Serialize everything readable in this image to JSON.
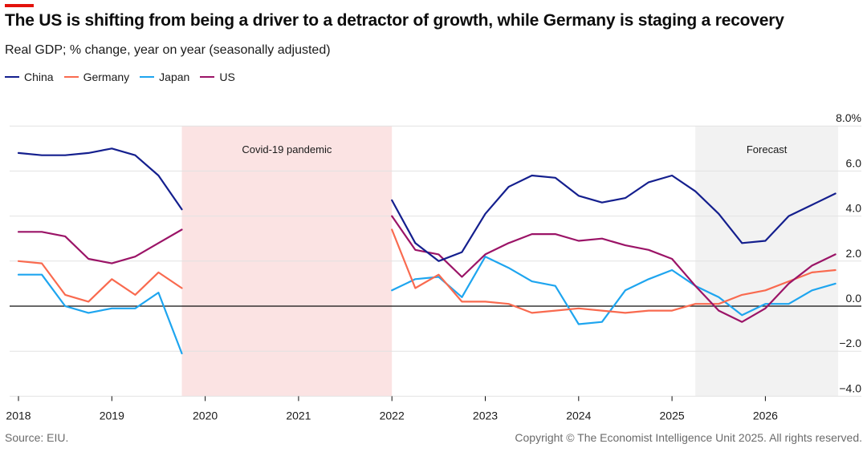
{
  "header": {
    "title": "The US is shifting from being a driver to a detractor of growth, while Germany is staging a recovery",
    "subtitle": "Real GDP; % change, year on year (seasonally adjusted)"
  },
  "footer": {
    "source": "Source: EIU.",
    "copyright": "Copyright © The Economist Intelligence Unit 2025. All rights reserved."
  },
  "colors": {
    "accent_bar": "#e3120b",
    "covid_band": "#fbe3e3",
    "forecast_band": "#f2f2f2"
  },
  "chart_data": {
    "type": "line",
    "title": "The US is shifting from being a driver to a detractor of growth, while Germany is staging a recovery",
    "subtitle": "Real GDP; % change, year on year (seasonally adjusted)",
    "xlabel": "",
    "ylabel": "",
    "x_unit": "year (quarterly data)",
    "xlim": [
      2018,
      2026.75
    ],
    "ylim": [
      -4,
      8
    ],
    "x_ticks": [
      2018,
      2019,
      2020,
      2021,
      2022,
      2023,
      2024,
      2025,
      2026
    ],
    "x_tick_labels": [
      "2018",
      "2019",
      "2020",
      "2021",
      "2022",
      "2023",
      "2024",
      "2025",
      "2026"
    ],
    "y_ticks": [
      8,
      6,
      4,
      2,
      0,
      -2,
      -4
    ],
    "y_tick_labels": [
      "8.0%",
      "6.0",
      "4.0",
      "2.0",
      "0.0",
      "−2.0",
      "−4.0"
    ],
    "y_axis_side": "right",
    "grid": true,
    "legend_position": "top-left",
    "bands": [
      {
        "name": "covid",
        "label": "Covid-19 pandemic",
        "from": 2019.75,
        "to": 2022.0,
        "color": "#fbe3e3"
      },
      {
        "name": "forecast",
        "label": "Forecast",
        "from": 2025.25,
        "to": 2026.78,
        "color": "#f2f2f2"
      }
    ],
    "segments": [
      {
        "x": [
          2018.0,
          2018.25,
          2018.5,
          2018.75,
          2019.0,
          2019.25,
          2019.5,
          2019.75
        ]
      },
      {
        "x": [
          2022.0,
          2022.25,
          2022.5,
          2022.75,
          2023.0,
          2023.25,
          2023.5,
          2023.75,
          2024.0,
          2024.25,
          2024.5,
          2024.75,
          2025.0,
          2025.25,
          2025.5,
          2025.75,
          2026.0,
          2026.25,
          2026.5,
          2026.75
        ]
      }
    ],
    "series": [
      {
        "name": "China",
        "color": "#141f8e",
        "values": [
          [
            6.8,
            6.7,
            6.7,
            6.8,
            7.0,
            6.7,
            5.8,
            4.3
          ],
          [
            4.7,
            2.8,
            2.0,
            2.4,
            4.1,
            5.3,
            5.8,
            5.7,
            4.9,
            4.6,
            4.8,
            5.5,
            5.8,
            5.1,
            4.1,
            2.8,
            2.9,
            4.0,
            4.5,
            5.0
          ]
        ]
      },
      {
        "name": "Germany",
        "color": "#f96a4f",
        "values": [
          [
            2.0,
            1.9,
            0.5,
            0.2,
            1.2,
            0.5,
            1.5,
            0.8
          ],
          [
            3.4,
            0.8,
            1.4,
            0.2,
            0.2,
            0.1,
            -0.3,
            -0.2,
            -0.1,
            -0.2,
            -0.3,
            -0.2,
            -0.2,
            0.1,
            0.1,
            0.5,
            0.7,
            1.1,
            1.5,
            1.6
          ]
        ]
      },
      {
        "name": "Japan",
        "color": "#1ea5ef",
        "values": [
          [
            1.4,
            1.4,
            0.0,
            -0.3,
            -0.1,
            -0.1,
            0.6,
            -2.1
          ],
          [
            0.7,
            1.2,
            1.3,
            0.4,
            2.2,
            1.7,
            1.1,
            0.9,
            -0.8,
            -0.7,
            0.7,
            1.2,
            1.6,
            0.9,
            0.4,
            -0.4,
            0.1,
            0.1,
            0.7,
            1.0
          ]
        ]
      },
      {
        "name": "US",
        "color": "#9b1467",
        "values": [
          [
            3.3,
            3.3,
            3.1,
            2.1,
            1.9,
            2.2,
            2.8,
            3.4
          ],
          [
            4.0,
            2.5,
            2.3,
            1.3,
            2.3,
            2.8,
            3.2,
            3.2,
            2.9,
            3.0,
            2.7,
            2.5,
            2.1,
            0.9,
            -0.2,
            -0.7,
            -0.1,
            1.0,
            1.8,
            2.3
          ]
        ]
      }
    ]
  }
}
